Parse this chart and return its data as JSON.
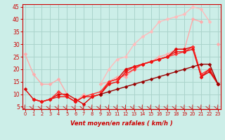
{
  "title": "",
  "xlabel": "Vent moyen/en rafales ( km/h )",
  "ylabel": "",
  "background_color": "#cceee8",
  "grid_color": "#aad4cc",
  "x_ticks": [
    0,
    1,
    2,
    3,
    4,
    5,
    6,
    7,
    8,
    9,
    10,
    11,
    12,
    13,
    14,
    15,
    16,
    17,
    18,
    19,
    20,
    21,
    22,
    23
  ],
  "ylim": [
    4,
    46
  ],
  "xlim": [
    -0.3,
    23.3
  ],
  "y_ticks": [
    5,
    10,
    15,
    20,
    25,
    30,
    35,
    40,
    45
  ],
  "series": [
    {
      "x": [
        0,
        1,
        2,
        3,
        4,
        5,
        6,
        7,
        8,
        9,
        10,
        11,
        12,
        13,
        14,
        15,
        16,
        17,
        18,
        19,
        20,
        21,
        22,
        23
      ],
      "y": [
        26,
        18,
        14,
        14,
        16,
        10,
        null,
        null,
        null,
        null,
        null,
        null,
        null,
        null,
        null,
        null,
        null,
        null,
        null,
        null,
        null,
        null,
        null,
        null
      ],
      "color": "#ffaaaa",
      "lw": 1.0,
      "marker": "D",
      "ms": 2.5
    },
    {
      "x": [
        0,
        1,
        2,
        3,
        4,
        5,
        6,
        7,
        8,
        9,
        10,
        11,
        12,
        13,
        14,
        15,
        16,
        17,
        18,
        19,
        20,
        21,
        22,
        23
      ],
      "y": [
        null,
        null,
        null,
        null,
        null,
        null,
        null,
        null,
        null,
        14,
        20,
        24,
        25,
        30,
        33,
        35,
        39,
        40,
        41,
        42,
        45,
        44,
        39,
        null
      ],
      "color": "#ffbbbb",
      "lw": 1.0,
      "marker": "D",
      "ms": 2.5
    },
    {
      "x": [
        0,
        1,
        2,
        3,
        4,
        5,
        6,
        7,
        8,
        9,
        10,
        11,
        12,
        13,
        14,
        15,
        16,
        17,
        18,
        19,
        20,
        21,
        22,
        23
      ],
      "y": [
        null,
        null,
        null,
        null,
        null,
        null,
        7,
        10,
        null,
        14,
        15,
        17,
        17,
        20,
        22,
        23,
        25,
        26,
        28,
        28,
        40,
        39,
        null,
        30
      ],
      "color": "#ffaaaa",
      "lw": 1.0,
      "marker": "D",
      "ms": 2.5
    },
    {
      "x": [
        0,
        1,
        2,
        3,
        4,
        5,
        6,
        7,
        8,
        9,
        10,
        11,
        12,
        13,
        14,
        15,
        16,
        17,
        18,
        19,
        20,
        21,
        22,
        23
      ],
      "y": [
        12,
        8,
        7,
        8,
        10,
        10,
        8,
        6,
        9,
        10,
        15,
        16,
        20,
        21,
        22,
        23,
        24,
        25,
        28,
        28,
        29,
        17,
        19,
        14
      ],
      "color": "#dd0000",
      "lw": 1.0,
      "marker": "D",
      "ms": 2.5
    },
    {
      "x": [
        0,
        1,
        2,
        3,
        4,
        5,
        6,
        7,
        8,
        9,
        10,
        11,
        12,
        13,
        14,
        15,
        16,
        17,
        18,
        19,
        20,
        21,
        22,
        23
      ],
      "y": [
        null,
        8,
        7,
        8,
        11,
        9,
        7,
        9,
        10,
        11,
        15,
        16,
        18,
        20,
        22,
        23,
        24,
        25,
        26,
        27,
        29,
        18,
        20,
        14
      ],
      "color": "#ff3333",
      "lw": 1.0,
      "marker": "D",
      "ms": 2.5
    },
    {
      "x": [
        0,
        1,
        2,
        3,
        4,
        5,
        6,
        7,
        8,
        9,
        10,
        11,
        12,
        13,
        14,
        15,
        16,
        17,
        18,
        19,
        20,
        21,
        22,
        23
      ],
      "y": [
        null,
        8,
        7,
        8,
        9,
        9,
        7,
        9,
        9,
        10,
        14,
        15,
        19,
        21,
        22,
        23,
        24,
        25,
        27,
        27,
        28,
        17,
        20,
        14
      ],
      "color": "#ee1111",
      "lw": 1.0,
      "marker": "D",
      "ms": 2.5
    },
    {
      "x": [
        0,
        1,
        2,
        3,
        4,
        5,
        6,
        7,
        8,
        9,
        10,
        11,
        12,
        13,
        14,
        15,
        16,
        17,
        18,
        19,
        20,
        21,
        22,
        23
      ],
      "y": [
        null,
        null,
        null,
        null,
        null,
        null,
        null,
        null,
        null,
        10,
        11,
        12,
        13,
        14,
        15,
        16,
        17,
        18,
        19,
        20,
        21,
        22,
        22,
        14
      ],
      "color": "#990000",
      "lw": 1.0,
      "marker": "D",
      "ms": 2.5
    }
  ],
  "arrow_color": "#cc2222",
  "tick_color": "#cc0000",
  "label_color": "#cc0000",
  "axis_color": "#cc0000",
  "spine_color": "#cc0000"
}
